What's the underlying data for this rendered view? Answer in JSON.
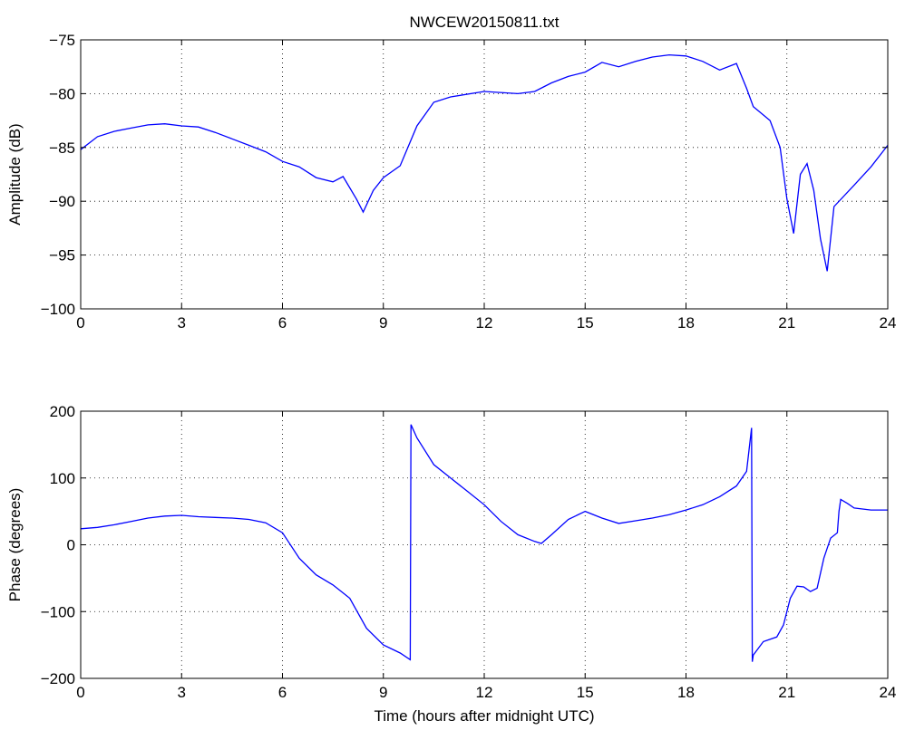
{
  "figure": {
    "title": "NWCEW20150811.txt"
  },
  "chart_data": [
    {
      "type": "line",
      "title": "NWCEW20150811.txt",
      "xlabel": "",
      "ylabel": "Amplitude (dB)",
      "xlim": [
        0,
        24
      ],
      "ylim": [
        -100,
        -75
      ],
      "xticks": [
        0,
        3,
        6,
        9,
        12,
        15,
        18,
        21,
        24
      ],
      "yticks": [
        -100,
        -95,
        -90,
        -85,
        -80,
        -75
      ],
      "xtick_labels": [
        "0",
        "3",
        "6",
        "9",
        "12",
        "15",
        "18",
        "21",
        "24"
      ],
      "ytick_labels": [
        "−100",
        "−95",
        "−90",
        "−85",
        "−80",
        "−75"
      ],
      "grid": true,
      "line_color": "#0000ff",
      "series": [
        {
          "x": [
            0,
            0.5,
            1,
            1.5,
            2,
            2.5,
            3,
            3.5,
            4,
            4.5,
            5,
            5.5,
            6,
            6.5,
            7,
            7.5,
            7.8,
            8.2,
            8.4,
            8.7,
            9,
            9.5,
            10,
            10.5,
            11,
            12,
            13,
            13.5,
            14,
            14.5,
            15,
            15.5,
            16,
            16.5,
            17,
            17.5,
            18,
            18.5,
            19,
            19.5,
            19.8,
            20,
            20.5,
            20.8,
            21.0,
            21.2,
            21.4,
            21.6,
            21.8,
            22.0,
            22.2,
            22.4,
            23,
            23.5,
            24
          ],
          "y": [
            -85.2,
            -84.0,
            -83.5,
            -83.2,
            -82.9,
            -82.8,
            -83.0,
            -83.1,
            -83.6,
            -84.2,
            -84.8,
            -85.4,
            -86.3,
            -86.8,
            -87.8,
            -88.2,
            -87.7,
            -89.8,
            -91.0,
            -89.0,
            -87.8,
            -86.7,
            -83.0,
            -80.8,
            -80.3,
            -79.8,
            -80.0,
            -79.8,
            -79.0,
            -78.4,
            -78.0,
            -77.1,
            -77.5,
            -77.0,
            -76.6,
            -76.4,
            -76.5,
            -77.0,
            -77.8,
            -77.2,
            -79.5,
            -81.2,
            -82.5,
            -85.0,
            -89.8,
            -93.0,
            -87.5,
            -86.5,
            -89.0,
            -93.5,
            -96.5,
            -90.5,
            -88.5,
            -86.8,
            -84.8
          ]
        }
      ]
    },
    {
      "type": "line",
      "title": "",
      "xlabel": "Time (hours after midnight UTC)",
      "ylabel": "Phase (degrees)",
      "xlim": [
        0,
        24
      ],
      "ylim": [
        -200,
        200
      ],
      "xticks": [
        0,
        3,
        6,
        9,
        12,
        15,
        18,
        21,
        24
      ],
      "yticks": [
        -200,
        -100,
        0,
        100,
        200
      ],
      "xtick_labels": [
        "0",
        "3",
        "6",
        "9",
        "12",
        "15",
        "18",
        "21",
        "24"
      ],
      "ytick_labels": [
        "−200",
        "−100",
        "0",
        "100",
        "200"
      ],
      "grid": true,
      "line_color": "#0000ff",
      "series": [
        {
          "x": [
            0,
            0.5,
            1,
            1.5,
            2,
            2.5,
            3,
            3.5,
            4,
            4.5,
            5,
            5.5,
            6,
            6.5,
            7,
            7.5,
            8,
            8.5,
            9,
            9.5,
            9.8,
            9.82,
            10,
            10.5,
            11,
            11.5,
            12,
            12.5,
            13,
            13.5,
            13.7,
            14,
            14.5,
            15,
            15.5,
            16,
            16.5,
            17,
            17.5,
            18,
            18.5,
            19,
            19.5,
            19.8,
            19.95,
            19.97,
            20.0,
            20.3,
            20.7,
            20.9,
            21.1,
            21.3,
            21.5,
            21.7,
            21.9,
            22.1,
            22.3,
            22.5,
            22.55,
            22.6,
            22.8,
            23,
            23.5,
            24
          ],
          "y": [
            24,
            26,
            30,
            35,
            40,
            43,
            44,
            42,
            41,
            40,
            38,
            33,
            18,
            -20,
            -45,
            -60,
            -80,
            -125,
            -150,
            -162,
            -172,
            180,
            160,
            120,
            100,
            80,
            60,
            35,
            15,
            5,
            2,
            15,
            38,
            50,
            40,
            32,
            36,
            40,
            45,
            52,
            60,
            72,
            88,
            110,
            175,
            -175,
            -165,
            -145,
            -138,
            -120,
            -80,
            -62,
            -63,
            -70,
            -65,
            -20,
            10,
            18,
            50,
            68,
            62,
            55,
            52,
            52
          ]
        }
      ]
    }
  ]
}
